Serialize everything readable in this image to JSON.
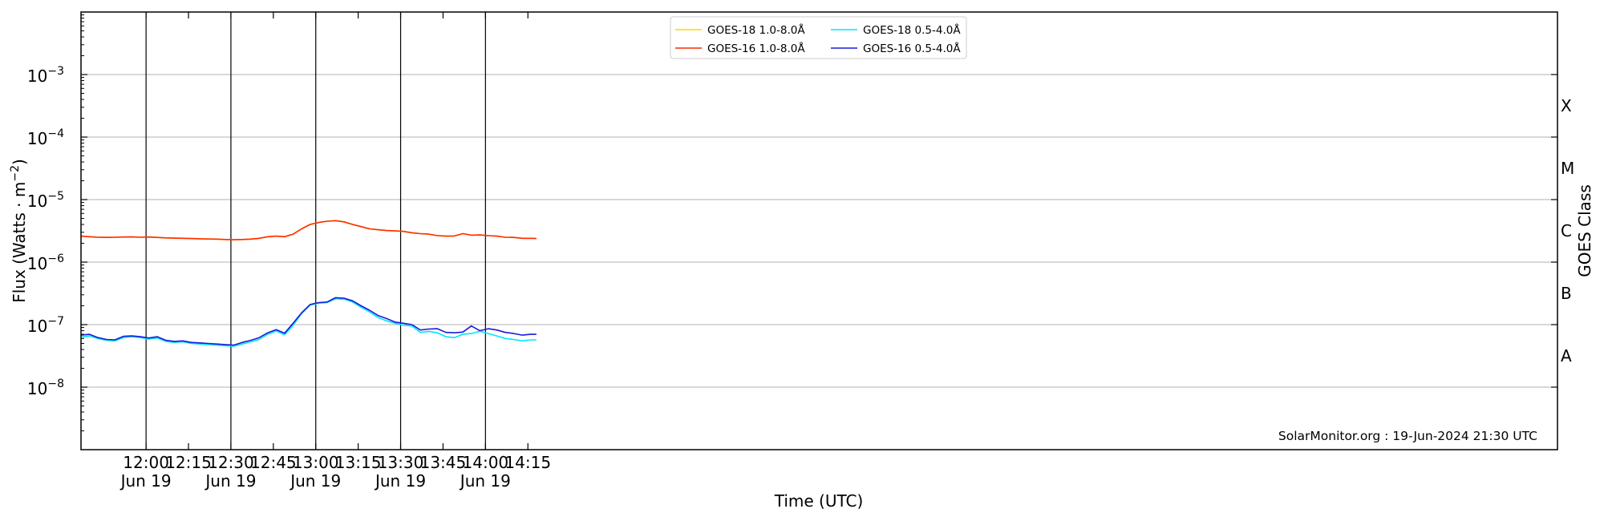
{
  "chart_data": {
    "type": "line",
    "xlabel": "Time (UTC)",
    "ylabel_base": "Flux (Watts · m",
    "ylabel_exp": "−2",
    "ylabel_close": ")",
    "y2label": "GOES Class",
    "y_scale": "log",
    "ylim": [
      1e-09,
      0.01
    ],
    "xlim_minutes": [
      697,
      1219
    ],
    "x_ticks": [
      {
        "minute": 720,
        "time": "12:00",
        "date": "Jun 19"
      },
      {
        "minute": 735,
        "time": "12:15",
        "date": ""
      },
      {
        "minute": 750,
        "time": "12:30",
        "date": "Jun 19"
      },
      {
        "minute": 765,
        "time": "12:45",
        "date": ""
      },
      {
        "minute": 780,
        "time": "13:00",
        "date": "Jun 19"
      },
      {
        "minute": 795,
        "time": "13:15",
        "date": ""
      },
      {
        "minute": 810,
        "time": "13:30",
        "date": "Jun 19"
      },
      {
        "minute": 825,
        "time": "13:45",
        "date": ""
      },
      {
        "minute": 840,
        "time": "14:00",
        "date": "Jun 19"
      },
      {
        "minute": 855,
        "time": "14:15",
        "date": ""
      }
    ],
    "y_ticks": [
      {
        "exp": -8,
        "base": "10",
        "power": "−8"
      },
      {
        "exp": -7,
        "base": "10",
        "power": "−7"
      },
      {
        "exp": -6,
        "base": "10",
        "power": "−6"
      },
      {
        "exp": -5,
        "base": "10",
        "power": "−5"
      },
      {
        "exp": -4,
        "base": "10",
        "power": "−4"
      },
      {
        "exp": -3,
        "base": "10",
        "power": "−3"
      }
    ],
    "goes_classes": [
      {
        "label": "A",
        "exp": -7.5
      },
      {
        "label": "B",
        "exp": -6.5
      },
      {
        "label": "C",
        "exp": -5.5
      },
      {
        "label": "M",
        "exp": -4.5
      },
      {
        "label": "X",
        "exp": -3.5
      }
    ],
    "day_lines_minutes": [
      720,
      750,
      780,
      810,
      840
    ],
    "grid": "horizontal at decades",
    "legend_position": "top-center",
    "x_minutes": [
      697,
      700,
      703,
      706,
      709,
      712,
      715,
      718,
      721,
      724,
      727,
      730,
      733,
      736,
      739,
      742,
      745,
      748,
      751,
      754,
      757,
      760,
      763,
      766,
      769,
      772,
      775,
      778,
      781,
      784,
      787,
      790,
      793,
      796,
      799,
      802,
      805,
      808,
      811,
      814,
      817,
      820,
      823,
      826,
      829,
      832,
      835,
      838,
      841,
      844,
      847,
      850,
      853,
      856,
      858
    ],
    "series": [
      {
        "name": "GOES-18 1.0-8.0Å",
        "color": "#ffd700",
        "values": [
          2.6e-06,
          2.55e-06,
          2.5e-06,
          2.48e-06,
          2.5e-06,
          2.52e-06,
          2.53e-06,
          2.5e-06,
          2.52e-06,
          2.48e-06,
          2.44e-06,
          2.42e-06,
          2.4e-06,
          2.38e-06,
          2.36e-06,
          2.34e-06,
          2.33e-06,
          2.3e-06,
          2.28e-06,
          2.3e-06,
          2.33e-06,
          2.4e-06,
          2.55e-06,
          2.6e-06,
          2.55e-06,
          2.8e-06,
          3.4e-06,
          4e-06,
          4.3e-06,
          4.5e-06,
          4.6e-06,
          4.4e-06,
          4e-06,
          3.7e-06,
          3.4e-06,
          3.3e-06,
          3.2e-06,
          3.15e-06,
          3.1e-06,
          2.95e-06,
          2.85e-06,
          2.8e-06,
          2.65e-06,
          2.6e-06,
          2.62e-06,
          2.85e-06,
          2.7e-06,
          2.72e-06,
          2.65e-06,
          2.6e-06,
          2.5e-06,
          2.48e-06,
          2.4e-06,
          2.4e-06,
          2.38e-06
        ]
      },
      {
        "name": "GOES-16 1.0-8.0Å",
        "color": "#ff2a00",
        "values": [
          2.6e-06,
          2.55e-06,
          2.5e-06,
          2.48e-06,
          2.5e-06,
          2.52e-06,
          2.53e-06,
          2.5e-06,
          2.52e-06,
          2.48e-06,
          2.44e-06,
          2.42e-06,
          2.4e-06,
          2.38e-06,
          2.36e-06,
          2.34e-06,
          2.33e-06,
          2.3e-06,
          2.28e-06,
          2.3e-06,
          2.33e-06,
          2.4e-06,
          2.55e-06,
          2.6e-06,
          2.55e-06,
          2.8e-06,
          3.4e-06,
          4e-06,
          4.3e-06,
          4.5e-06,
          4.6e-06,
          4.4e-06,
          4e-06,
          3.7e-06,
          3.4e-06,
          3.3e-06,
          3.2e-06,
          3.15e-06,
          3.1e-06,
          2.95e-06,
          2.85e-06,
          2.8e-06,
          2.65e-06,
          2.6e-06,
          2.62e-06,
          2.85e-06,
          2.7e-06,
          2.72e-06,
          2.65e-06,
          2.6e-06,
          2.5e-06,
          2.48e-06,
          2.4e-06,
          2.4e-06,
          2.38e-06
        ]
      },
      {
        "name": "GOES-18 0.5-4.0Å",
        "color": "#00e5ff",
        "values": [
          6.3e-08,
          6.6e-08,
          6e-08,
          5.6e-08,
          5.5e-08,
          6.2e-08,
          6.4e-08,
          6.2e-08,
          5.9e-08,
          6.1e-08,
          5.4e-08,
          5.2e-08,
          5.3e-08,
          5e-08,
          4.9e-08,
          4.8e-08,
          4.7e-08,
          4.6e-08,
          4.5e-08,
          4.9e-08,
          5.3e-08,
          5.8e-08,
          7e-08,
          7.9e-08,
          6.9e-08,
          9.8e-08,
          1.5e-07,
          2.05e-07,
          2.2e-07,
          2.25e-07,
          2.6e-07,
          2.55e-07,
          2.3e-07,
          1.9e-07,
          1.6e-07,
          1.3e-07,
          1.15e-07,
          1.05e-07,
          9.8e-08,
          9.5e-08,
          7.5e-08,
          7.8e-08,
          7.4e-08,
          6.4e-08,
          6.2e-08,
          7e-08,
          7.2e-08,
          7.8e-08,
          7.2e-08,
          6.6e-08,
          6e-08,
          5.8e-08,
          5.5e-08,
          5.7e-08,
          5.7e-08
        ]
      },
      {
        "name": "GOES-16 0.5-4.0Å",
        "color": "#1a1adc",
        "values": [
          6.8e-08,
          7e-08,
          6.2e-08,
          5.8e-08,
          5.7e-08,
          6.5e-08,
          6.6e-08,
          6.4e-08,
          6.1e-08,
          6.4e-08,
          5.6e-08,
          5.4e-08,
          5.5e-08,
          5.2e-08,
          5.1e-08,
          5e-08,
          4.9e-08,
          4.8e-08,
          4.7e-08,
          5.2e-08,
          5.6e-08,
          6.2e-08,
          7.4e-08,
          8.3e-08,
          7.3e-08,
          1.05e-07,
          1.55e-07,
          2.1e-07,
          2.25e-07,
          2.3e-07,
          2.7e-07,
          2.65e-07,
          2.4e-07,
          2e-07,
          1.7e-07,
          1.4e-07,
          1.25e-07,
          1.1e-07,
          1.05e-07,
          1e-07,
          8.2e-08,
          8.5e-08,
          8.6e-08,
          7.5e-08,
          7.4e-08,
          7.6e-08,
          9.5e-08,
          8e-08,
          8.6e-08,
          8.2e-08,
          7.5e-08,
          7.2e-08,
          6.8e-08,
          7e-08,
          7e-08
        ]
      }
    ],
    "legend_order": [
      0,
      2,
      1,
      3
    ]
  },
  "watermark": "SolarMonitor.org : 19-Jun-2024 21:30 UTC"
}
